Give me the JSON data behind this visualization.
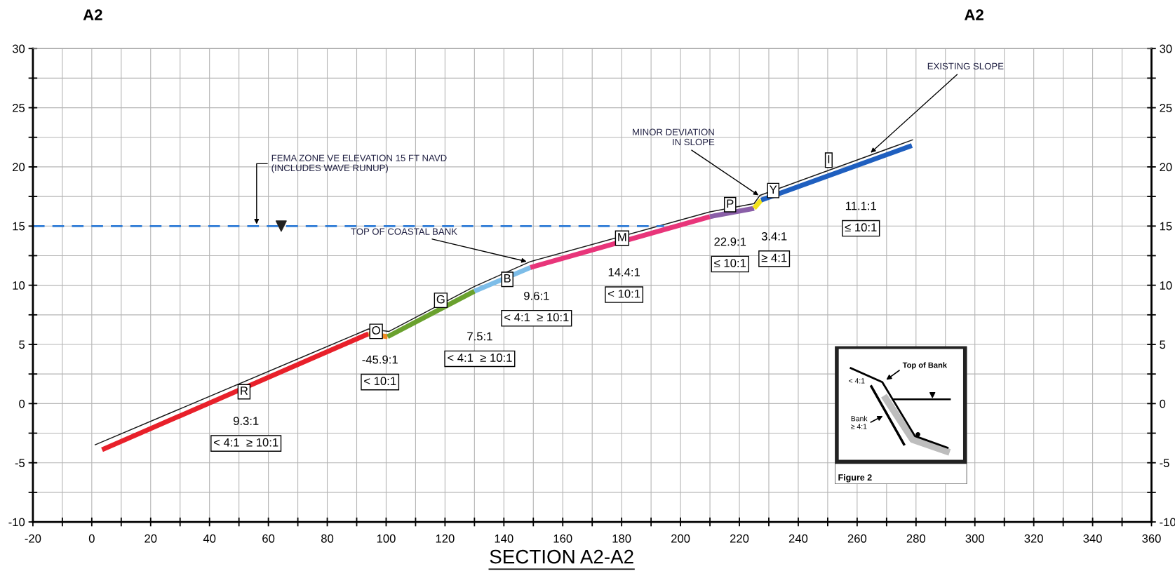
{
  "chart_data": {
    "type": "line",
    "title": "SECTION A2-A2",
    "xlim": [
      -20,
      360
    ],
    "ylim": [
      -10,
      30
    ],
    "y2lim": [
      -10,
      30
    ],
    "xticks": [
      -20,
      {
        "value": -10,
        "label": null
      },
      0,
      {
        "value": 10,
        "label": null
      },
      20,
      {
        "value": 30,
        "label": null
      },
      40,
      {
        "value": 50,
        "label": null
      },
      60,
      {
        "value": 70,
        "label": null
      },
      80,
      {
        "value": 90,
        "label": null
      },
      100,
      {
        "value": 110,
        "label": null
      },
      120,
      {
        "value": 130,
        "label": null
      },
      140,
      {
        "value": 150,
        "label": null
      },
      160,
      {
        "value": 170,
        "label": null
      },
      180,
      {
        "value": 190,
        "label": null
      },
      200,
      {
        "value": 210,
        "label": null
      },
      220,
      {
        "value": 230,
        "label": null
      },
      240,
      {
        "value": 250,
        "label": null
      },
      260,
      {
        "value": 270,
        "label": null
      },
      280,
      {
        "value": 290,
        "label": null
      },
      300,
      {
        "value": 310,
        "label": null
      },
      320,
      {
        "value": 330,
        "label": null
      },
      340,
      {
        "value": 350,
        "label": null
      },
      360
    ],
    "yticks": [
      -10,
      {
        "value": -7.5,
        "label": null
      },
      -5,
      {
        "value": -2.5,
        "label": null
      },
      0,
      {
        "value": 2.5,
        "label": null
      },
      5,
      {
        "value": 7.5,
        "label": null
      },
      10,
      {
        "value": 12.5,
        "label": null
      },
      15,
      {
        "value": 17.5,
        "label": null
      },
      20,
      {
        "value": 22.5,
        "label": null
      },
      25,
      {
        "value": 27.5,
        "label": null
      },
      30
    ],
    "y2ticks": [
      -10,
      {
        "value": -7.5,
        "label": null
      },
      -5,
      {
        "value": -2.5,
        "label": null
      },
      0,
      {
        "value": 2.5,
        "label": null
      },
      5,
      {
        "value": 7.5,
        "label": null
      },
      10,
      {
        "value": 12.5,
        "label": null
      },
      15,
      {
        "value": 17.5,
        "label": null
      },
      20,
      {
        "value": 22.5,
        "label": null
      },
      25,
      {
        "value": 27.5,
        "label": null
      },
      30
    ],
    "grid": true,
    "legend": false,
    "marker": "none",
    "line_style": "solid",
    "series": [
      {
        "color": "#1a1a1a",
        "x": [
          1,
          94,
          101,
          130,
          149,
          210,
          225,
          227,
          279
        ],
        "values": [
          -3.5,
          6.3,
          6.1,
          9.9,
          12.0,
          16.2,
          16.9,
          17.6,
          22.3
        ]
      },
      {
        "name": "R",
        "color": "#e8202a",
        "x": [
          3.5,
          94
        ],
        "values": [
          -3.9,
          5.9
        ]
      },
      {
        "name": "O",
        "color": "#f08a24",
        "x": [
          94,
          100.5
        ],
        "values": [
          5.9,
          5.65
        ]
      },
      {
        "name": "G",
        "color": "#6aa12e",
        "x": [
          100.5,
          130
        ],
        "values": [
          5.65,
          9.5
        ]
      },
      {
        "name": "B",
        "color": "#7dbde8",
        "x": [
          130,
          149
        ],
        "values": [
          9.5,
          11.5
        ]
      },
      {
        "name": "M",
        "color": "#e8357a",
        "x": [
          149,
          210
        ],
        "values": [
          11.5,
          15.8
        ]
      },
      {
        "name": "P",
        "color": "#8a5fa8",
        "x": [
          210,
          225
        ],
        "values": [
          15.8,
          16.5
        ]
      },
      {
        "name": "Y",
        "color": "#f2e21a",
        "x": [
          225,
          227.4
        ],
        "values": [
          16.5,
          17.2
        ]
      },
      {
        "name": "I",
        "color": "#1f5fbf",
        "x": [
          227.4,
          278.6
        ],
        "values": [
          17.2,
          21.8
        ]
      }
    ],
    "ref_lines": [
      {
        "axis": "y",
        "value": 15,
        "label": "FEMA ZONE VE ELEVATION 15 FT NAVD\n(INCLUDES WAVE RUNUP)",
        "color": "#2e7bd6",
        "line_style": "dashed"
      }
    ],
    "annotations": [
      "A2",
      "A2",
      {
        "text": "TOP OF COASTAL BANK",
        "x": 147.7,
        "y": 12.0
      },
      {
        "text": "MINOR DEVIATION\nIN SLOPE",
        "x": 226.5,
        "y": 17.6
      },
      {
        "text": "EXISTING SLOPE",
        "x": 264.6,
        "y": 21.2
      },
      "9.3:1\n< 4:1  ≥ 10:1",
      "-45.9:1\n< 10:1",
      "7.5:1\n< 4:1  ≥ 10:1",
      "9.6:1\n< 4:1  ≥ 10:1",
      "14.4:1\n< 10:1",
      "22.9:1\n≤ 10:1",
      "3.4:1\n≥ 4:1",
      "11.1:1\n≤ 10:1",
      "Top of Bank",
      "< 4:1",
      "Bank\n≥ 4:1",
      "Figure 2"
    ]
  }
}
